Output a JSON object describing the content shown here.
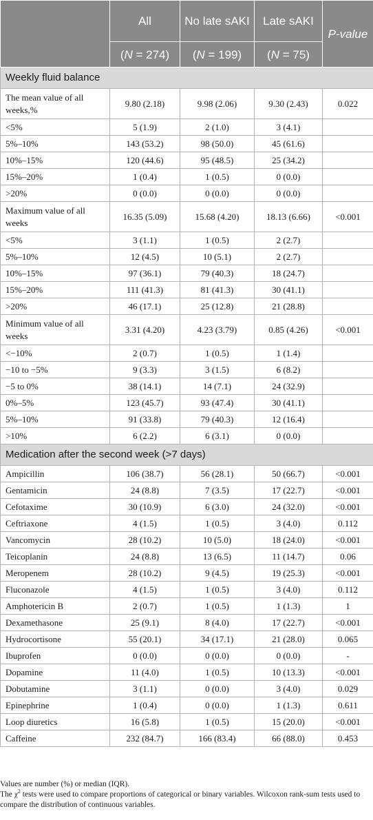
{
  "header": {
    "col_all": "All",
    "col_no_late": "No late sAKI",
    "col_late": "Late sAKI",
    "col_p": "P-value",
    "n_all": "274",
    "n_no_late": "199",
    "n_late": "75",
    "n_prefix": "(",
    "n_symbol": "N",
    "n_eq": " = "
  },
  "sections": [
    {
      "title": "Weekly fluid balance",
      "rows": [
        {
          "label": "The mean value of all weeks,%",
          "all": "9.80 (2.18)",
          "no_late": "9.98 (2.06)",
          "late": "9.30 (2.43)",
          "p": "0.022"
        },
        {
          "label": "<5%",
          "all": "5 (1.9)",
          "no_late": "2 (1.0)",
          "late": "3 (4.1)",
          "p": ""
        },
        {
          "label": "5%–10%",
          "all": "143 (53.2)",
          "no_late": "98 (50.0)",
          "late": "45 (61.6)",
          "p": ""
        },
        {
          "label": "10%–15%",
          "all": "120 (44.6)",
          "no_late": "95 (48.5)",
          "late": "25 (34.2)",
          "p": ""
        },
        {
          "label": "15%–20%",
          "all": "1 (0.4)",
          "no_late": "1 (0.5)",
          "late": "0 (0.0)",
          "p": ""
        },
        {
          "label": ">20%",
          "all": "0 (0.0)",
          "no_late": "0 (0.0)",
          "late": "0 (0.0)",
          "p": ""
        },
        {
          "label": "Maximum value of all weeks",
          "all": "16.35 (5.09)",
          "no_late": "15.68 (4.20)",
          "late": "18.13 (6.66)",
          "p": "<0.001"
        },
        {
          "label": "<5%",
          "all": "3 (1.1)",
          "no_late": "1 (0.5)",
          "late": "2 (2.7)",
          "p": ""
        },
        {
          "label": "5%–10%",
          "all": "12 (4.5)",
          "no_late": "10 (5.1)",
          "late": "2 (2.7)",
          "p": ""
        },
        {
          "label": "10%–15%",
          "all": "97 (36.1)",
          "no_late": "79 (40.3)",
          "late": "18 (24.7)",
          "p": ""
        },
        {
          "label": "15%–20%",
          "all": "111 (41.3)",
          "no_late": "81 (41.3)",
          "late": "30 (41.1)",
          "p": ""
        },
        {
          "label": ">20%",
          "all": "46 (17.1)",
          "no_late": "25 (12.8)",
          "late": "21 (28.8)",
          "p": ""
        },
        {
          "label": "Minimum value of all weeks",
          "all": "3.31 (4.20)",
          "no_late": "4.23 (3.79)",
          "late": "0.85 (4.26)",
          "p": "<0.001"
        },
        {
          "label": "<−10%",
          "all": "2 (0.7)",
          "no_late": "1 (0.5)",
          "late": "1 (1.4)",
          "p": ""
        },
        {
          "label": "−10 to −5%",
          "all": "9 (3.3)",
          "no_late": "3 (1.5)",
          "late": "6 (8.2)",
          "p": ""
        },
        {
          "label": "−5 to 0%",
          "all": "38 (14.1)",
          "no_late": "14 (7.1)",
          "late": "24 (32.9)",
          "p": ""
        },
        {
          "label": "0%–5%",
          "all": "123 (45.7)",
          "no_late": "93 (47.4)",
          "late": "30 (41.1)",
          "p": ""
        },
        {
          "label": "5%–10%",
          "all": "91 (33.8)",
          "no_late": "79 (40.3)",
          "late": "12 (16.4)",
          "p": ""
        },
        {
          "label": ">10%",
          "all": "6 (2.2)",
          "no_late": "6 (3.1)",
          "late": "0 (0.0)",
          "p": ""
        }
      ]
    },
    {
      "title": "Medication after the second week (>7 days)",
      "rows": [
        {
          "label": "Ampicillin",
          "all": "106 (38.7)",
          "no_late": "56 (28.1)",
          "late": "50 (66.7)",
          "p": "<0.001"
        },
        {
          "label": "Gentamicin",
          "all": "24 (8.8)",
          "no_late": "7 (3.5)",
          "late": "17 (22.7)",
          "p": "<0.001"
        },
        {
          "label": "Cefotaxime",
          "all": "30 (10.9)",
          "no_late": "6 (3.0)",
          "late": "24 (32.0)",
          "p": "<0.001"
        },
        {
          "label": "Ceftriaxone",
          "all": "4 (1.5)",
          "no_late": "1 (0.5)",
          "late": "3 (4.0)",
          "p": "0.112"
        },
        {
          "label": "Vancomycin",
          "all": "28 (10.2)",
          "no_late": "10 (5.0)",
          "late": "18 (24.0)",
          "p": "<0.001"
        },
        {
          "label": "Teicoplanin",
          "all": "24 (8.8)",
          "no_late": "13 (6.5)",
          "late": "11 (14.7)",
          "p": "0.06"
        },
        {
          "label": "Meropenem",
          "all": "28 (10.2)",
          "no_late": "9 (4.5)",
          "late": "19 (25.3)",
          "p": "<0.001"
        },
        {
          "label": "Fluconazole",
          "all": "4 (1.5)",
          "no_late": "1 (0.5)",
          "late": "3 (4.0)",
          "p": "0.112"
        },
        {
          "label": "Amphotericin B",
          "all": "2 (0.7)",
          "no_late": "1 (0.5)",
          "late": "1 (1.3)",
          "p": "1"
        },
        {
          "label": "Dexamethasone",
          "all": "25 (9.1)",
          "no_late": "8 (4.0)",
          "late": "17 (22.7)",
          "p": "<0.001"
        },
        {
          "label": "Hydrocortisone",
          "all": "55 (20.1)",
          "no_late": "34 (17.1)",
          "late": "21 (28.0)",
          "p": "0.065"
        },
        {
          "label": "Ibuprofen",
          "all": "0 (0.0)",
          "no_late": "0 (0.0)",
          "late": "0 (0.0)",
          "p": "-"
        },
        {
          "label": "Dopamine",
          "all": "11 (4.0)",
          "no_late": "1 (0.5)",
          "late": "10 (13.3)",
          "p": "<0.001"
        },
        {
          "label": "Dobutamine",
          "all": "3 (1.1)",
          "no_late": "0 (0.0)",
          "late": "3 (4.0)",
          "p": "0.029"
        },
        {
          "label": "Epinephrine",
          "all": "1 (0.4)",
          "no_late": "0 (0.0)",
          "late": "1 (1.3)",
          "p": "0.611"
        },
        {
          "label": "Loop diuretics",
          "all": "16 (5.8)",
          "no_late": "1 (0.5)",
          "late": "15 (20.0)",
          "p": "<0.001"
        },
        {
          "label": "Caffeine",
          "all": "232 (84.7)",
          "no_late": "166 (83.4)",
          "late": "66 (88.0)",
          "p": "0.453"
        }
      ]
    }
  ],
  "footnotes": {
    "line1": "Values are number (%) or median (IQR).",
    "line2_a": "The χ",
    "line2_sup": "2",
    "line2_b": " tests were used to compare proportions of categorical or binary variables. Wilcoxon rank-sum tests used to compare the distribution of continuous variables."
  }
}
